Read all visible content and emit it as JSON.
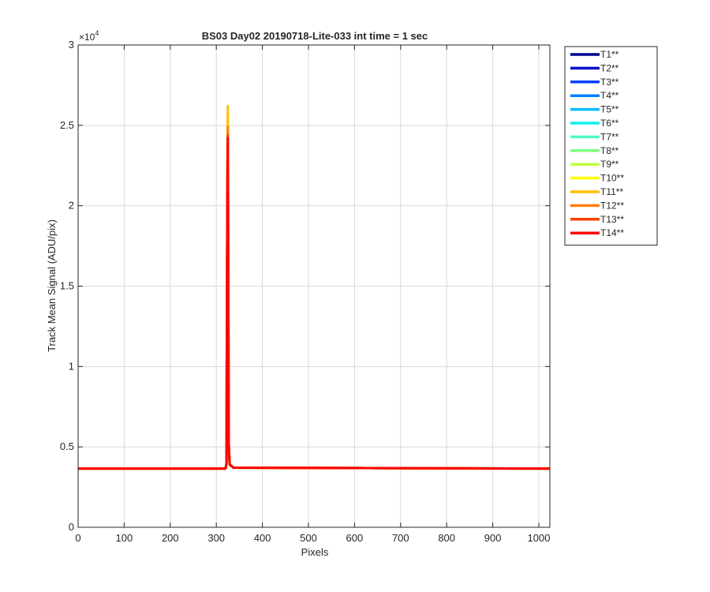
{
  "chart_data": {
    "type": "line",
    "title": "BS03 Day02 20190718-Lite-033 int time = 1 sec",
    "xlabel": "Pixels",
    "ylabel": "Track Mean Signal (ADU/pix)",
    "xlim": [
      0,
      1024
    ],
    "ylim": [
      0,
      30000
    ],
    "y_exponent_label": "×10",
    "y_exponent": "4",
    "xticks": [
      0,
      100,
      200,
      300,
      400,
      500,
      600,
      700,
      800,
      900,
      1000
    ],
    "xtick_labels": [
      "0",
      "100",
      "200",
      "300",
      "400",
      "500",
      "600",
      "700",
      "800",
      "900",
      "1000"
    ],
    "yticks": [
      0,
      5000,
      10000,
      15000,
      20000,
      25000,
      30000
    ],
    "ytick_labels": [
      "0",
      "0.5",
      "1",
      "1.5",
      "2",
      "2.5",
      "3"
    ],
    "grid": true,
    "legend_position": "outside-top-right",
    "baseline": 3650,
    "peak_x": 325,
    "series": [
      {
        "name": "T1**",
        "color": "#00008f",
        "peak": 24200
      },
      {
        "name": "T2**",
        "color": "#0010c8",
        "peak": 24300
      },
      {
        "name": "T3**",
        "color": "#0040ff",
        "peak": 24400
      },
      {
        "name": "T4**",
        "color": "#0080ff",
        "peak": 24500
      },
      {
        "name": "T5**",
        "color": "#00bfff",
        "peak": 24600
      },
      {
        "name": "T6**",
        "color": "#10f0f0",
        "peak": 24700
      },
      {
        "name": "T7**",
        "color": "#50ffc0",
        "peak": 24800
      },
      {
        "name": "T8**",
        "color": "#80ff80",
        "peak": 25000
      },
      {
        "name": "T9**",
        "color": "#c0ff40",
        "peak": 25300
      },
      {
        "name": "T10**",
        "color": "#ffff00",
        "peak": 25800
      },
      {
        "name": "T11**",
        "color": "#ffbf00",
        "peak": 26200
      },
      {
        "name": "T12**",
        "color": "#ff8000",
        "peak": 24900
      },
      {
        "name": "T13**",
        "color": "#ff4000",
        "peak": 24400
      },
      {
        "name": "T14**",
        "color": "#ff0000",
        "peak": 24200
      }
    ]
  }
}
